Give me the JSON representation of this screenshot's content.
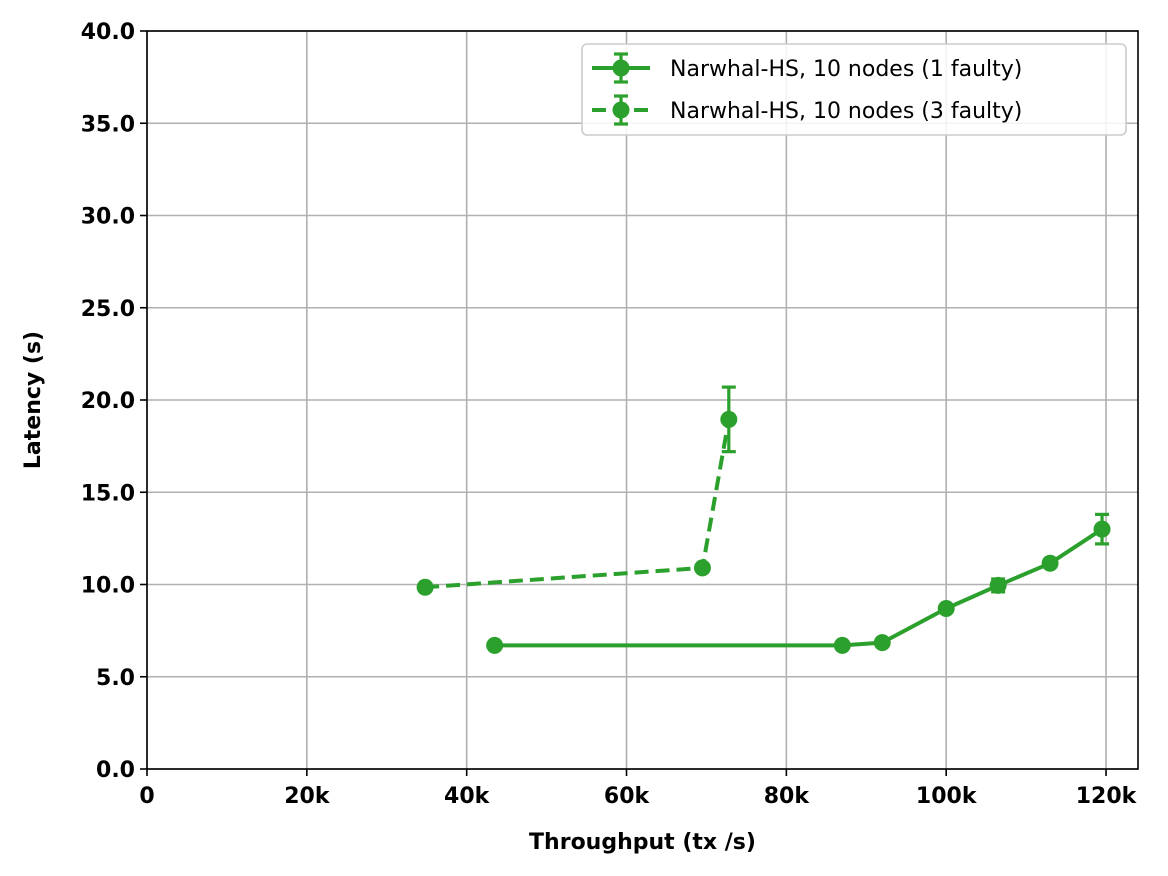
{
  "chart_data": {
    "type": "line",
    "title": "",
    "xlabel": "Throughput (tx /s)",
    "ylabel": "Latency (s)",
    "xlim": [
      0,
      124000
    ],
    "ylim": [
      0,
      40
    ],
    "x_ticks": [
      0,
      20000,
      40000,
      60000,
      80000,
      100000,
      120000
    ],
    "x_tick_labels": [
      "0",
      "20k",
      "40k",
      "60k",
      "80k",
      "100k",
      "120k"
    ],
    "y_ticks": [
      0,
      5,
      10,
      15,
      20,
      25,
      30,
      35,
      40
    ],
    "y_tick_labels": [
      "0.0",
      "5.0",
      "10.0",
      "15.0",
      "20.0",
      "25.0",
      "30.0",
      "35.0",
      "40.0"
    ],
    "grid": true,
    "legend_position": "top-right",
    "series": [
      {
        "name": "Narwhal-HS, 10 nodes (1 faulty)",
        "color": "#2ca02c",
        "linestyle": "solid",
        "points": [
          {
            "x": 43500,
            "y": 6.7,
            "err": 0.0
          },
          {
            "x": 87000,
            "y": 6.7,
            "err": 0.0
          },
          {
            "x": 92000,
            "y": 6.85,
            "err": 0.0
          },
          {
            "x": 100000,
            "y": 8.7,
            "err": 0.15
          },
          {
            "x": 106500,
            "y": 9.95,
            "err": 0.35
          },
          {
            "x": 113000,
            "y": 11.15,
            "err": 0.2
          },
          {
            "x": 119500,
            "y": 13.0,
            "err": 0.8
          }
        ]
      },
      {
        "name": "Narwhal-HS, 10 nodes (3 faulty)",
        "color": "#2ca02c",
        "linestyle": "dashed",
        "points": [
          {
            "x": 34800,
            "y": 9.85,
            "err": 0.0
          },
          {
            "x": 69500,
            "y": 10.9,
            "err": 0.0
          },
          {
            "x": 72800,
            "y": 18.95,
            "err": 1.75
          }
        ]
      }
    ]
  }
}
